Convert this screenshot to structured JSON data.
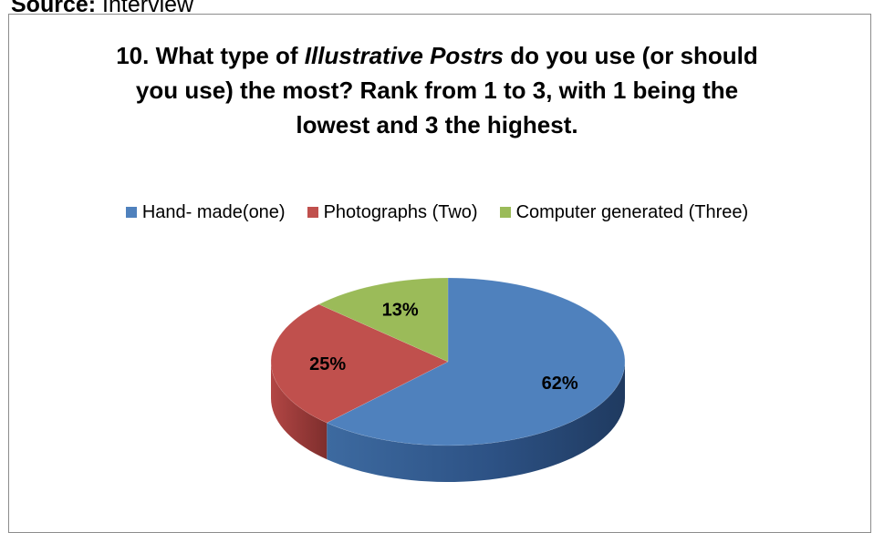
{
  "source": {
    "label": "Source:",
    "text": " Interview"
  },
  "chart_data": {
    "type": "pie",
    "title_lines": [
      {
        "pre": "10. What type of ",
        "italic": "Illustrative Postrs",
        "post": " do you use (or should"
      },
      {
        "text": "you use) the most? Rank from 1 to 3, with 1 being the"
      },
      {
        "text": "lowest and 3 the highest."
      }
    ],
    "legend_placement": "top",
    "categories": [
      "Hand- made(one)",
      "Photographs (Two)",
      "Computer generated (Three)"
    ],
    "values": [
      62,
      25,
      13
    ],
    "labels": [
      "62%",
      "25%",
      "13%"
    ],
    "colors": [
      "#4F81BD",
      "#C0504D",
      "#9BBB59"
    ],
    "style": "3d"
  }
}
